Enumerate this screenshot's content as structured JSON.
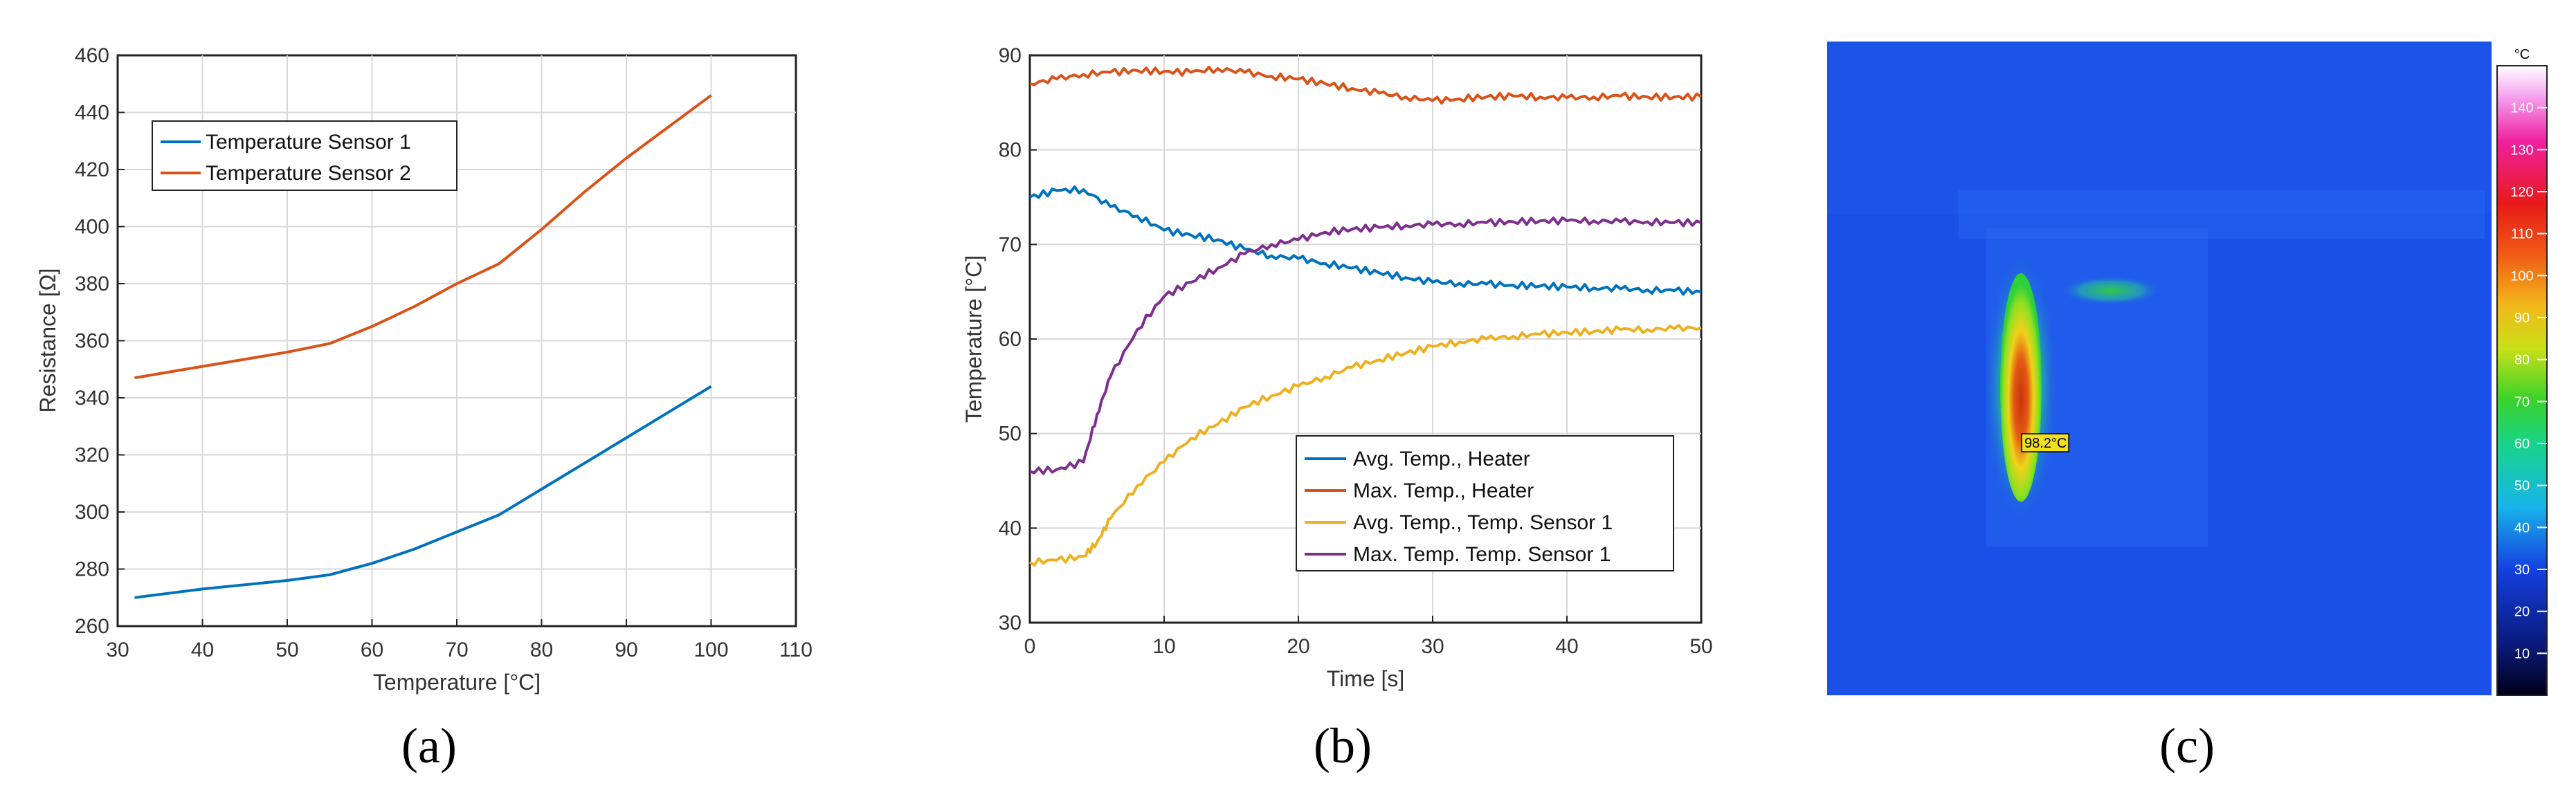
{
  "chart_data": [
    {
      "id": "a",
      "type": "line",
      "caption": "(a)",
      "xlabel": "Temperature [°C]",
      "ylabel": "Resistance [Ω]",
      "xlim": [
        30,
        110
      ],
      "ylim": [
        260,
        460
      ],
      "xticks": [
        30,
        40,
        50,
        60,
        70,
        80,
        90,
        100,
        110
      ],
      "yticks": [
        260,
        280,
        300,
        320,
        340,
        360,
        380,
        400,
        420,
        440,
        460
      ],
      "grid": true,
      "legend_position": "top-left",
      "series": [
        {
          "name": "Temperature Sensor 1",
          "color": "#0072BD",
          "x": [
            32,
            40,
            50,
            55,
            60,
            65,
            70,
            75,
            80,
            85,
            90,
            95,
            100
          ],
          "y": [
            270,
            273,
            276,
            278,
            282,
            287,
            293,
            299,
            308,
            317,
            326,
            335,
            344
          ]
        },
        {
          "name": "Temperature Sensor 2",
          "color": "#D95319",
          "x": [
            32,
            40,
            50,
            55,
            60,
            65,
            70,
            75,
            80,
            85,
            90,
            95,
            100
          ],
          "y": [
            347,
            351,
            356,
            359,
            365,
            372,
            380,
            387,
            399,
            412,
            424,
            435,
            446
          ]
        }
      ]
    },
    {
      "id": "b",
      "type": "line",
      "caption": "(b)",
      "xlabel": "Time [s]",
      "ylabel": "Temperature [°C]",
      "xlim": [
        0,
        50
      ],
      "ylim": [
        30,
        90
      ],
      "xticks": [
        0,
        10,
        20,
        30,
        40,
        50
      ],
      "yticks": [
        30,
        40,
        50,
        60,
        70,
        80,
        90
      ],
      "grid": true,
      "legend_position": "bottom-right",
      "series": [
        {
          "name": "Avg. Temp., Heater",
          "color": "#0072BD",
          "x": [
            0,
            2,
            4,
            6,
            8,
            10,
            12,
            14,
            16,
            18,
            20,
            22,
            24,
            26,
            28,
            30,
            32,
            34,
            36,
            38,
            40,
            42,
            44,
            46,
            48,
            50
          ],
          "y": [
            75,
            75.7,
            75.8,
            74,
            73,
            71.5,
            71,
            70.5,
            69.5,
            68.8,
            68.5,
            68,
            67.5,
            67,
            66.5,
            66,
            65.9,
            65.8,
            65.7,
            65.6,
            65.5,
            65.4,
            65.3,
            65.2,
            65.1,
            65
          ]
        },
        {
          "name": "Max. Temp., Heater",
          "color": "#D95319",
          "x": [
            0,
            2,
            4,
            6,
            8,
            10,
            12,
            14,
            16,
            18,
            20,
            22,
            24,
            26,
            28,
            30,
            32,
            34,
            36,
            38,
            40,
            42,
            44,
            46,
            48,
            50
          ],
          "y": [
            87,
            87.5,
            88,
            88.2,
            88.4,
            88.3,
            88.2,
            88.6,
            88.2,
            87.8,
            87.5,
            87,
            86.5,
            86,
            85.6,
            85.2,
            85.4,
            85.6,
            85.7,
            85.6,
            85.5,
            85.6,
            85.7,
            85.6,
            85.6,
            85.6
          ]
        },
        {
          "name": "Avg. Temp., Temp. Sensor 1",
          "color": "#EDB120",
          "x": [
            0,
            2,
            4,
            5,
            6,
            8,
            10,
            12,
            14,
            16,
            18,
            20,
            22,
            24,
            26,
            28,
            30,
            32,
            34,
            36,
            38,
            40,
            42,
            44,
            46,
            48,
            50
          ],
          "y": [
            36.4,
            36.6,
            37,
            38.5,
            41,
            44.5,
            47,
            49.5,
            51,
            52.8,
            54,
            55,
            56,
            57,
            57.8,
            58.5,
            59.2,
            59.7,
            60,
            60.3,
            60.5,
            60.7,
            60.8,
            61,
            61,
            61.1,
            61.2
          ]
        },
        {
          "name": "Max. Temp. Temp. Sensor 1",
          "color": "#7E2F8E",
          "x": [
            0,
            2,
            4,
            5,
            6,
            8,
            10,
            12,
            14,
            16,
            18,
            20,
            22,
            24,
            26,
            28,
            30,
            32,
            34,
            36,
            38,
            40,
            42,
            44,
            46,
            48,
            50
          ],
          "y": [
            46,
            46.2,
            47,
            52,
            56,
            61,
            64.5,
            66,
            67.5,
            69,
            70,
            70.5,
            71.3,
            71.6,
            71.8,
            72,
            72.1,
            72.2,
            72.3,
            72.4,
            72.5,
            72.5,
            72.5,
            72.4,
            72.4,
            72.3,
            72.3
          ]
        }
      ]
    }
  ],
  "panel_c": {
    "caption": "(c)",
    "colorbar_unit": "°C",
    "colorbar_ticks": [
      10,
      20,
      30,
      40,
      50,
      60,
      70,
      80,
      90,
      100,
      110,
      120,
      130,
      140
    ],
    "colorbar_max": 150,
    "marker_label": "98.2°C",
    "colors": {
      "background": "#1a4fe8",
      "hot_core": "#e35a14",
      "warm": "#f0d21a",
      "mid": "#2fd13a"
    }
  }
}
